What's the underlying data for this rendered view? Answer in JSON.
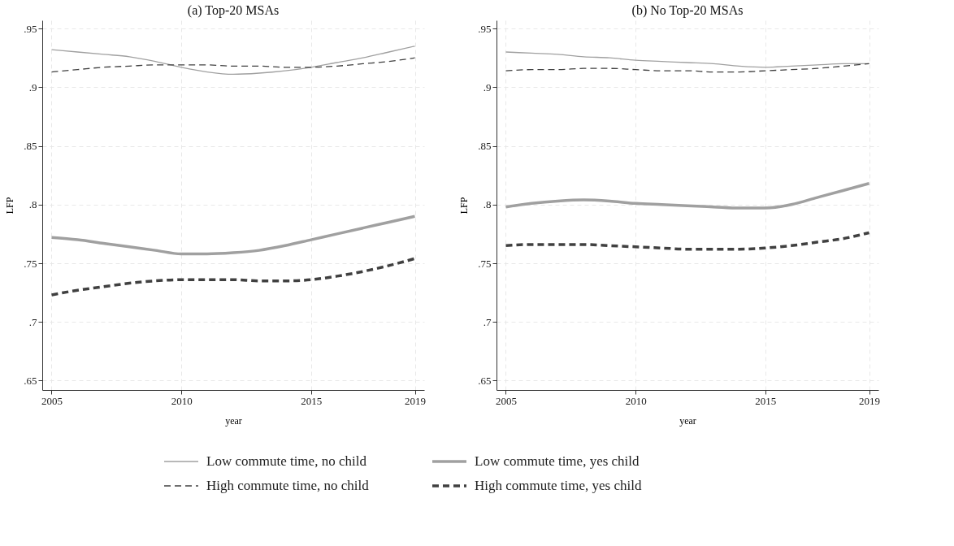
{
  "chart_data": [
    {
      "type": "line",
      "title": "(a) Top-20 MSAs",
      "xlabel": "year",
      "ylabel": "LFP",
      "grid": true,
      "legend": "bottom",
      "marker": "none",
      "x": [
        2005,
        2006,
        2007,
        2008,
        2009,
        2010,
        2011,
        2012,
        2013,
        2014,
        2015,
        2016,
        2017,
        2018,
        2019
      ],
      "xlim": [
        2004.64,
        2019.36
      ],
      "xticks": [
        2005,
        2010,
        2015,
        2019
      ],
      "ylim": [
        0.642,
        0.957
      ],
      "yticks": [
        {
          "value": 0.65,
          "label": ".65"
        },
        {
          "value": 0.7,
          "label": ".7"
        },
        {
          "value": 0.75,
          "label": ".75"
        },
        {
          "value": 0.8,
          "label": ".8"
        },
        {
          "value": 0.85,
          "label": ".85"
        },
        {
          "value": 0.9,
          "label": ".9"
        },
        {
          "value": 0.95,
          "label": ".95"
        }
      ],
      "series": [
        {
          "name": "Low commute time, no child",
          "color": "#a0a0a0",
          "line_style": "solid",
          "values": [
            0.932,
            0.93,
            0.928,
            0.926,
            0.922,
            0.917,
            0.913,
            0.911,
            0.912,
            0.914,
            0.917,
            0.921,
            0.925,
            0.93,
            0.935
          ]
        },
        {
          "name": "High commute time, no child",
          "color": "#404040",
          "line_style": "dashed",
          "values": [
            0.913,
            0.915,
            0.917,
            0.918,
            0.919,
            0.919,
            0.919,
            0.918,
            0.918,
            0.917,
            0.917,
            0.918,
            0.92,
            0.922,
            0.925
          ]
        },
        {
          "name": "Low commute time, yes child",
          "color": "#a0a0a0",
          "line_style": "solid",
          "values": [
            0.772,
            0.77,
            0.767,
            0.764,
            0.761,
            0.758,
            0.758,
            0.759,
            0.761,
            0.765,
            0.77,
            0.775,
            0.78,
            0.785,
            0.79
          ]
        },
        {
          "name": "High commute time, yes child",
          "color": "#404040",
          "line_style": "dashed",
          "values": [
            0.723,
            0.727,
            0.73,
            0.733,
            0.735,
            0.736,
            0.736,
            0.736,
            0.735,
            0.735,
            0.736,
            0.739,
            0.743,
            0.748,
            0.754
          ]
        }
      ]
    },
    {
      "type": "line",
      "title": "(b) No Top-20 MSAs",
      "xlabel": "year",
      "ylabel": "LFP",
      "grid": true,
      "legend": "bottom",
      "marker": "none",
      "x": [
        2005,
        2006,
        2007,
        2008,
        2009,
        2010,
        2011,
        2012,
        2013,
        2014,
        2015,
        2016,
        2017,
        2018,
        2019
      ],
      "xlim": [
        2004.64,
        2019.36
      ],
      "xticks": [
        2005,
        2010,
        2015,
        2019
      ],
      "ylim": [
        0.642,
        0.957
      ],
      "yticks": [
        {
          "value": 0.65,
          "label": ".65"
        },
        {
          "value": 0.7,
          "label": ".7"
        },
        {
          "value": 0.75,
          "label": ".75"
        },
        {
          "value": 0.8,
          "label": ".8"
        },
        {
          "value": 0.85,
          "label": ".85"
        },
        {
          "value": 0.9,
          "label": ".9"
        },
        {
          "value": 0.95,
          "label": ".95"
        }
      ],
      "series": [
        {
          "color": "#a0a0a0",
          "line_style": "solid",
          "values": [
            0.93,
            0.929,
            0.928,
            0.926,
            0.925,
            0.923,
            0.922,
            0.921,
            0.92,
            0.918,
            0.917,
            0.918,
            0.919,
            0.92,
            0.92
          ]
        },
        {
          "color": "#404040",
          "line_style": "dashed",
          "values": [
            0.914,
            0.915,
            0.915,
            0.916,
            0.916,
            0.915,
            0.914,
            0.914,
            0.913,
            0.913,
            0.914,
            0.915,
            0.916,
            0.918,
            0.92
          ]
        },
        {
          "color": "#a0a0a0",
          "line_style": "solid",
          "values": [
            0.798,
            0.801,
            0.803,
            0.804,
            0.803,
            0.801,
            0.8,
            0.799,
            0.798,
            0.797,
            0.797,
            0.8,
            0.806,
            0.812,
            0.818
          ]
        },
        {
          "color": "#404040",
          "line_style": "dashed",
          "values": [
            0.765,
            0.766,
            0.766,
            0.766,
            0.765,
            0.764,
            0.763,
            0.762,
            0.762,
            0.762,
            0.763,
            0.765,
            0.768,
            0.771,
            0.776
          ]
        }
      ]
    }
  ]
}
